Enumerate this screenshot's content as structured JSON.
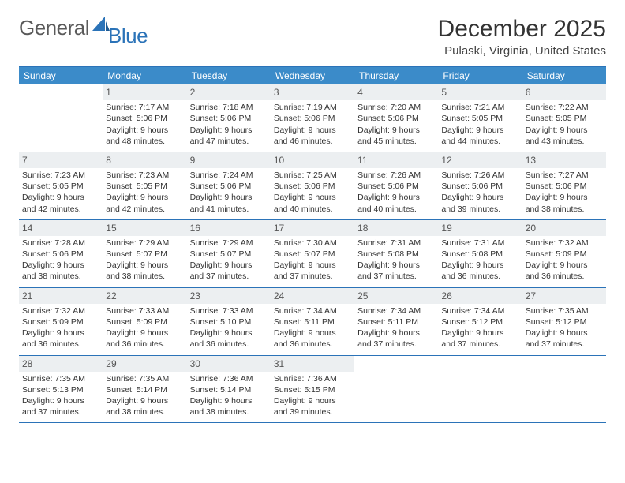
{
  "logo": {
    "general": "General",
    "blue": "Blue"
  },
  "title": "December 2025",
  "location": "Pulaski, Virginia, United States",
  "colors": {
    "header_bg": "#3b8bc9",
    "border": "#2b73b8",
    "daynum_bg": "#eceff1",
    "text": "#333333",
    "logo_gray": "#5a5a5a",
    "logo_blue": "#2b73b8"
  },
  "day_headers": [
    "Sunday",
    "Monday",
    "Tuesday",
    "Wednesday",
    "Thursday",
    "Friday",
    "Saturday"
  ],
  "weeks": [
    [
      {
        "n": "",
        "sr": "",
        "ss": "",
        "dl": ""
      },
      {
        "n": "1",
        "sr": "Sunrise: 7:17 AM",
        "ss": "Sunset: 5:06 PM",
        "dl": "Daylight: 9 hours and 48 minutes."
      },
      {
        "n": "2",
        "sr": "Sunrise: 7:18 AM",
        "ss": "Sunset: 5:06 PM",
        "dl": "Daylight: 9 hours and 47 minutes."
      },
      {
        "n": "3",
        "sr": "Sunrise: 7:19 AM",
        "ss": "Sunset: 5:06 PM",
        "dl": "Daylight: 9 hours and 46 minutes."
      },
      {
        "n": "4",
        "sr": "Sunrise: 7:20 AM",
        "ss": "Sunset: 5:06 PM",
        "dl": "Daylight: 9 hours and 45 minutes."
      },
      {
        "n": "5",
        "sr": "Sunrise: 7:21 AM",
        "ss": "Sunset: 5:05 PM",
        "dl": "Daylight: 9 hours and 44 minutes."
      },
      {
        "n": "6",
        "sr": "Sunrise: 7:22 AM",
        "ss": "Sunset: 5:05 PM",
        "dl": "Daylight: 9 hours and 43 minutes."
      }
    ],
    [
      {
        "n": "7",
        "sr": "Sunrise: 7:23 AM",
        "ss": "Sunset: 5:05 PM",
        "dl": "Daylight: 9 hours and 42 minutes."
      },
      {
        "n": "8",
        "sr": "Sunrise: 7:23 AM",
        "ss": "Sunset: 5:05 PM",
        "dl": "Daylight: 9 hours and 42 minutes."
      },
      {
        "n": "9",
        "sr": "Sunrise: 7:24 AM",
        "ss": "Sunset: 5:06 PM",
        "dl": "Daylight: 9 hours and 41 minutes."
      },
      {
        "n": "10",
        "sr": "Sunrise: 7:25 AM",
        "ss": "Sunset: 5:06 PM",
        "dl": "Daylight: 9 hours and 40 minutes."
      },
      {
        "n": "11",
        "sr": "Sunrise: 7:26 AM",
        "ss": "Sunset: 5:06 PM",
        "dl": "Daylight: 9 hours and 40 minutes."
      },
      {
        "n": "12",
        "sr": "Sunrise: 7:26 AM",
        "ss": "Sunset: 5:06 PM",
        "dl": "Daylight: 9 hours and 39 minutes."
      },
      {
        "n": "13",
        "sr": "Sunrise: 7:27 AM",
        "ss": "Sunset: 5:06 PM",
        "dl": "Daylight: 9 hours and 38 minutes."
      }
    ],
    [
      {
        "n": "14",
        "sr": "Sunrise: 7:28 AM",
        "ss": "Sunset: 5:06 PM",
        "dl": "Daylight: 9 hours and 38 minutes."
      },
      {
        "n": "15",
        "sr": "Sunrise: 7:29 AM",
        "ss": "Sunset: 5:07 PM",
        "dl": "Daylight: 9 hours and 38 minutes."
      },
      {
        "n": "16",
        "sr": "Sunrise: 7:29 AM",
        "ss": "Sunset: 5:07 PM",
        "dl": "Daylight: 9 hours and 37 minutes."
      },
      {
        "n": "17",
        "sr": "Sunrise: 7:30 AM",
        "ss": "Sunset: 5:07 PM",
        "dl": "Daylight: 9 hours and 37 minutes."
      },
      {
        "n": "18",
        "sr": "Sunrise: 7:31 AM",
        "ss": "Sunset: 5:08 PM",
        "dl": "Daylight: 9 hours and 37 minutes."
      },
      {
        "n": "19",
        "sr": "Sunrise: 7:31 AM",
        "ss": "Sunset: 5:08 PM",
        "dl": "Daylight: 9 hours and 36 minutes."
      },
      {
        "n": "20",
        "sr": "Sunrise: 7:32 AM",
        "ss": "Sunset: 5:09 PM",
        "dl": "Daylight: 9 hours and 36 minutes."
      }
    ],
    [
      {
        "n": "21",
        "sr": "Sunrise: 7:32 AM",
        "ss": "Sunset: 5:09 PM",
        "dl": "Daylight: 9 hours and 36 minutes."
      },
      {
        "n": "22",
        "sr": "Sunrise: 7:33 AM",
        "ss": "Sunset: 5:09 PM",
        "dl": "Daylight: 9 hours and 36 minutes."
      },
      {
        "n": "23",
        "sr": "Sunrise: 7:33 AM",
        "ss": "Sunset: 5:10 PM",
        "dl": "Daylight: 9 hours and 36 minutes."
      },
      {
        "n": "24",
        "sr": "Sunrise: 7:34 AM",
        "ss": "Sunset: 5:11 PM",
        "dl": "Daylight: 9 hours and 36 minutes."
      },
      {
        "n": "25",
        "sr": "Sunrise: 7:34 AM",
        "ss": "Sunset: 5:11 PM",
        "dl": "Daylight: 9 hours and 37 minutes."
      },
      {
        "n": "26",
        "sr": "Sunrise: 7:34 AM",
        "ss": "Sunset: 5:12 PM",
        "dl": "Daylight: 9 hours and 37 minutes."
      },
      {
        "n": "27",
        "sr": "Sunrise: 7:35 AM",
        "ss": "Sunset: 5:12 PM",
        "dl": "Daylight: 9 hours and 37 minutes."
      }
    ],
    [
      {
        "n": "28",
        "sr": "Sunrise: 7:35 AM",
        "ss": "Sunset: 5:13 PM",
        "dl": "Daylight: 9 hours and 37 minutes."
      },
      {
        "n": "29",
        "sr": "Sunrise: 7:35 AM",
        "ss": "Sunset: 5:14 PM",
        "dl": "Daylight: 9 hours and 38 minutes."
      },
      {
        "n": "30",
        "sr": "Sunrise: 7:36 AM",
        "ss": "Sunset: 5:14 PM",
        "dl": "Daylight: 9 hours and 38 minutes."
      },
      {
        "n": "31",
        "sr": "Sunrise: 7:36 AM",
        "ss": "Sunset: 5:15 PM",
        "dl": "Daylight: 9 hours and 39 minutes."
      },
      {
        "n": "",
        "sr": "",
        "ss": "",
        "dl": ""
      },
      {
        "n": "",
        "sr": "",
        "ss": "",
        "dl": ""
      },
      {
        "n": "",
        "sr": "",
        "ss": "",
        "dl": ""
      }
    ]
  ]
}
